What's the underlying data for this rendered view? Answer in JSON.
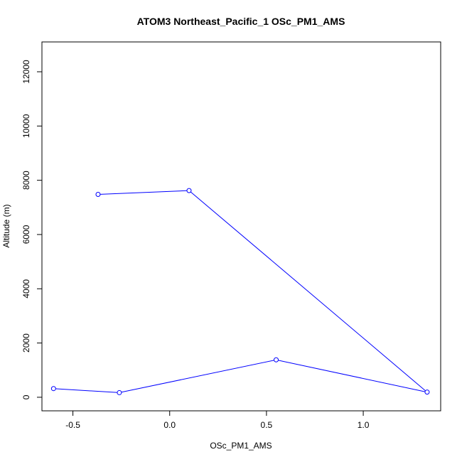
{
  "chart_data": {
    "type": "line",
    "title": "ATOM3 Northeast_Pacific_1 OSc_PM1_AMS",
    "xlabel": "OSc_PM1_AMS",
    "ylabel": "Altitude (m)",
    "xlim": [
      -0.66,
      1.4
    ],
    "ylim": [
      -500,
      13100
    ],
    "x_ticks": [
      -0.5,
      0.0,
      0.5,
      1.0
    ],
    "x_tick_labels": [
      "-0.5",
      "0.0",
      "0.5",
      "1.0"
    ],
    "y_ticks": [
      0,
      2000,
      4000,
      6000,
      8000,
      10000,
      12000
    ],
    "y_tick_labels": [
      "0",
      "2000",
      "4000",
      "6000",
      "8000",
      "10000",
      "12000"
    ],
    "grid": false,
    "series": [
      {
        "color": "#0000ff",
        "marker": "open-circle",
        "points": [
          {
            "x": -0.37,
            "y": 7480
          },
          {
            "x": 0.1,
            "y": 7620
          },
          {
            "x": 1.33,
            "y": 190
          },
          {
            "x": 0.55,
            "y": 1380
          },
          {
            "x": -0.26,
            "y": 170
          },
          {
            "x": -0.6,
            "y": 320
          }
        ]
      }
    ]
  }
}
